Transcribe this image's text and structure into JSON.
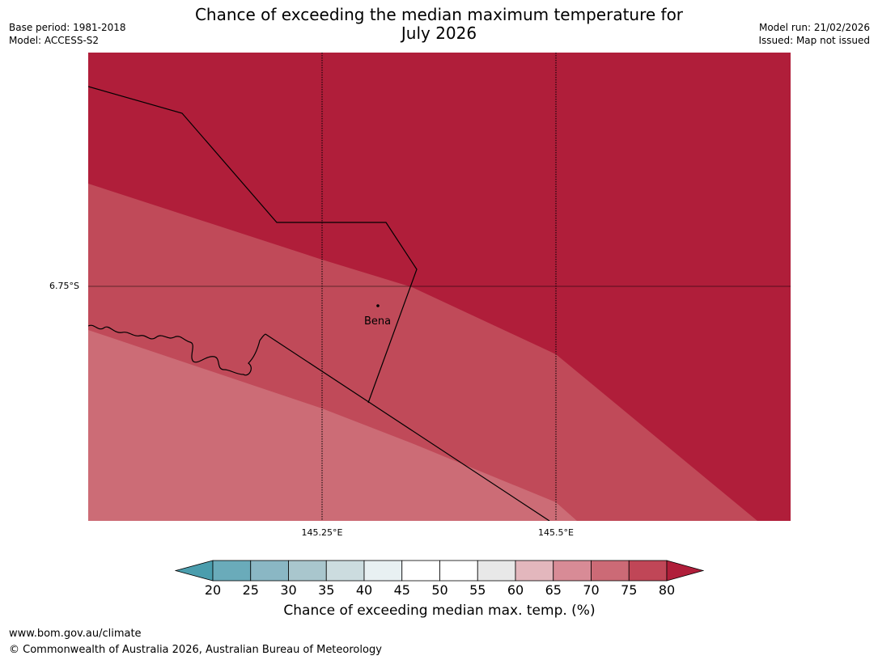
{
  "title_line1": "Chance of exceeding the median maximum temperature for",
  "title_line2": "July 2026",
  "meta_left": {
    "base_period": "Base period: 1981-2018",
    "model": "Model: ACCESS-S2"
  },
  "meta_right": {
    "model_run": "Model run: 21/02/2026",
    "issued": "Issued: Map not issued"
  },
  "map": {
    "lat_label": "6.75°S",
    "lon_labels": [
      "145.25°E",
      "145.5°E"
    ],
    "place_name": "Bena",
    "colors": {
      "band_80": "#b01e3a",
      "band_75": "#c04a59",
      "band_70": "#cc6c76",
      "band_65": "#d4848d"
    }
  },
  "colorbar": {
    "ticks": [
      "20",
      "25",
      "30",
      "35",
      "40",
      "45",
      "50",
      "55",
      "60",
      "65",
      "70",
      "75",
      "80"
    ],
    "colors": [
      "#4a9dad",
      "#6aabba",
      "#8ab7c4",
      "#a9c6cd",
      "#ccdcdf",
      "#e8f0f2",
      "#ffffff",
      "#ffffff",
      "#e8e8e8",
      "#e3b7bd",
      "#d88b96",
      "#cc6a76",
      "#c04657",
      "#b01e3a"
    ],
    "label": "Chance of exceeding median max. temp. (%)"
  },
  "footer": {
    "url": "www.bom.gov.au/climate",
    "copyright": "© Commonwealth of Australia 2026, Australian Bureau of Meteorology"
  }
}
